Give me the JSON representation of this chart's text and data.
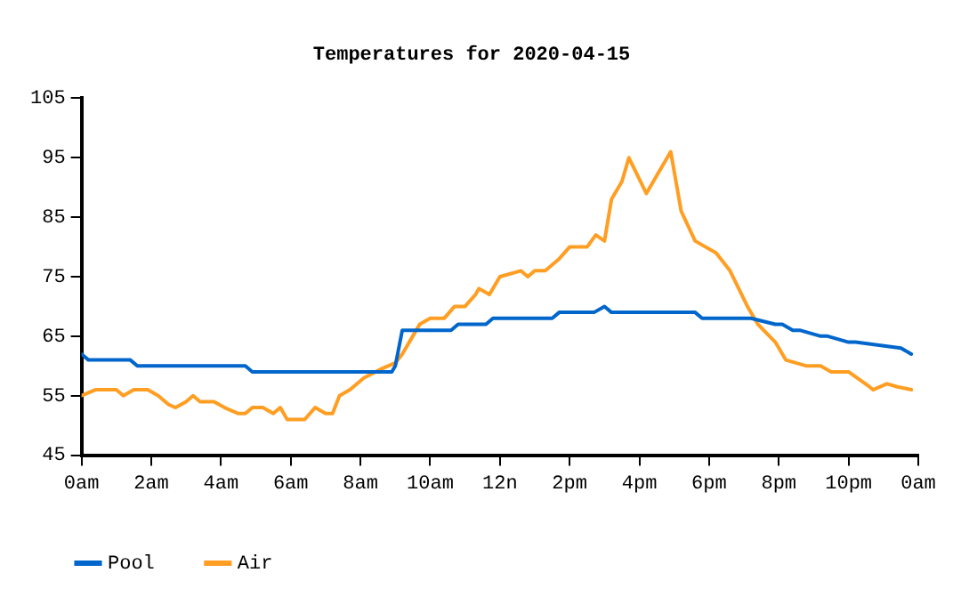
{
  "chart_data": {
    "type": "line",
    "title": "Temperatures for 2020-04-15",
    "xlim": [
      "2020-04-15T00:00",
      "2020-04-16T00:00"
    ],
    "xticks": [
      {
        "value": "2020-04-15T00:00",
        "label": "0am"
      },
      {
        "value": "2020-04-15T02:00",
        "label": "2am"
      },
      {
        "value": "2020-04-15T04:00",
        "label": "4am"
      },
      {
        "value": "2020-04-15T06:00",
        "label": "6am"
      },
      {
        "value": "2020-04-15T08:00",
        "label": "8am"
      },
      {
        "value": "2020-04-15T10:00",
        "label": "10am"
      },
      {
        "value": "2020-04-15T12:00",
        "label": "12n"
      },
      {
        "value": "2020-04-15T14:00",
        "label": "2pm"
      },
      {
        "value": "2020-04-15T16:00",
        "label": "4pm"
      },
      {
        "value": "2020-04-15T18:00",
        "label": "6pm"
      },
      {
        "value": "2020-04-15T20:00",
        "label": "8pm"
      },
      {
        "value": "2020-04-15T22:00",
        "label": "10pm"
      },
      {
        "value": "2020-04-16T00:00",
        "label": "0am"
      }
    ],
    "ylim": [
      45,
      105
    ],
    "yticks": [
      45,
      55,
      65,
      75,
      85,
      95,
      105
    ],
    "grid": false,
    "legend": "bottom left",
    "marker": "none",
    "line_style": "solid",
    "series": [
      {
        "name": "Pool",
        "color": "#0066cc",
        "x": [
          "2020-04-15T00:00",
          "2020-04-15T00:12",
          "2020-04-15T01:24",
          "2020-04-15T01:36",
          "2020-04-15T04:42",
          "2020-04-15T04:54",
          "2020-04-15T08:54",
          "2020-04-15T09:00",
          "2020-04-15T09:12",
          "2020-04-15T10:36",
          "2020-04-15T10:48",
          "2020-04-15T11:36",
          "2020-04-15T11:48",
          "2020-04-15T13:30",
          "2020-04-15T13:42",
          "2020-04-15T14:42",
          "2020-04-15T15:00",
          "2020-04-15T15:12",
          "2020-04-15T17:36",
          "2020-04-15T17:48",
          "2020-04-15T19:12",
          "2020-04-15T19:54",
          "2020-04-15T20:06",
          "2020-04-15T20:24",
          "2020-04-15T20:36",
          "2020-04-15T21:12",
          "2020-04-15T21:24",
          "2020-04-15T22:00",
          "2020-04-15T22:12",
          "2020-04-15T23:30",
          "2020-04-15T23:48"
        ],
        "values": [
          62,
          61,
          61,
          60,
          60,
          59,
          59,
          60,
          66,
          66,
          67,
          67,
          68,
          68,
          69,
          69,
          70,
          69,
          69,
          68,
          68,
          67,
          67,
          66,
          66,
          65,
          65,
          64,
          64,
          63,
          62
        ]
      },
      {
        "name": "Air",
        "color": "#ff9e22",
        "x": [
          "2020-04-15T00:00",
          "2020-04-15T00:24",
          "2020-04-15T01:00",
          "2020-04-15T01:12",
          "2020-04-15T01:30",
          "2020-04-15T01:54",
          "2020-04-15T02:12",
          "2020-04-15T02:30",
          "2020-04-15T02:42",
          "2020-04-15T03:00",
          "2020-04-15T03:12",
          "2020-04-15T03:24",
          "2020-04-15T03:48",
          "2020-04-15T04:06",
          "2020-04-15T04:30",
          "2020-04-15T04:42",
          "2020-04-15T04:54",
          "2020-04-15T05:12",
          "2020-04-15T05:30",
          "2020-04-15T05:42",
          "2020-04-15T05:54",
          "2020-04-15T06:24",
          "2020-04-15T06:42",
          "2020-04-15T07:00",
          "2020-04-15T07:12",
          "2020-04-15T07:24",
          "2020-04-15T07:42",
          "2020-04-15T08:06",
          "2020-04-15T08:36",
          "2020-04-15T09:00",
          "2020-04-15T09:12",
          "2020-04-15T09:30",
          "2020-04-15T09:42",
          "2020-04-15T10:00",
          "2020-04-15T10:24",
          "2020-04-15T10:42",
          "2020-04-15T11:00",
          "2020-04-15T11:18",
          "2020-04-15T11:24",
          "2020-04-15T11:42",
          "2020-04-15T12:00",
          "2020-04-15T12:36",
          "2020-04-15T12:48",
          "2020-04-15T13:00",
          "2020-04-15T13:18",
          "2020-04-15T13:42",
          "2020-04-15T14:00",
          "2020-04-15T14:30",
          "2020-04-15T14:45",
          "2020-04-15T15:00",
          "2020-04-15T15:12",
          "2020-04-15T15:30",
          "2020-04-15T15:42",
          "2020-04-15T16:12",
          "2020-04-15T16:30",
          "2020-04-15T16:54",
          "2020-04-15T17:12",
          "2020-04-15T17:36",
          "2020-04-15T18:12",
          "2020-04-15T18:36",
          "2020-04-15T19:06",
          "2020-04-15T19:24",
          "2020-04-15T19:54",
          "2020-04-15T20:12",
          "2020-04-15T20:48",
          "2020-04-15T21:12",
          "2020-04-15T21:30",
          "2020-04-15T22:00",
          "2020-04-15T22:36",
          "2020-04-15T22:42",
          "2020-04-15T23:06",
          "2020-04-15T23:24",
          "2020-04-15T23:48"
        ],
        "values": [
          55,
          56,
          56,
          55,
          56,
          56,
          55,
          53.5,
          53,
          54,
          55,
          54,
          54,
          53,
          52,
          52,
          53,
          53,
          52,
          53,
          51,
          51,
          53,
          52,
          52,
          55,
          56,
          58,
          59.5,
          60.5,
          62,
          65,
          67,
          68,
          68,
          70,
          70,
          72,
          73,
          72,
          75,
          76,
          75,
          76,
          76,
          78,
          80,
          80,
          82,
          81,
          88,
          91,
          95,
          89,
          92,
          96,
          86,
          81,
          79,
          76,
          70,
          67,
          64,
          61,
          60,
          60,
          59,
          59,
          56.5,
          56,
          57,
          56.5,
          56
        ]
      }
    ]
  }
}
